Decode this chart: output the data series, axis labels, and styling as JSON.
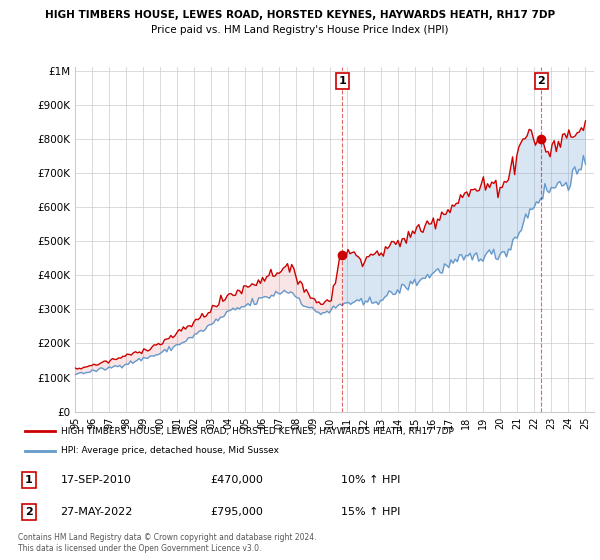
{
  "title": "HIGH TIMBERS HOUSE, LEWES ROAD, HORSTED KEYNES, HAYWARDS HEATH, RH17 7DP",
  "subtitle": "Price paid vs. HM Land Registry's House Price Index (HPI)",
  "ylim": [
    0,
    1000000
  ],
  "xlim_start": 1995.0,
  "xlim_end": 2025.5,
  "transaction1": {
    "date_num": 2010.72,
    "price": 470000,
    "label": "1"
  },
  "transaction2": {
    "date_num": 2022.41,
    "price": 795000,
    "label": "2"
  },
  "legend_line1": "HIGH TIMBERS HOUSE, LEWES ROAD, HORSTED KEYNES, HAYWARDS HEATH, RH17 7DP",
  "legend_line2": "HPI: Average price, detached house, Mid Sussex",
  "footer": "Contains HM Land Registry data © Crown copyright and database right 2024.\nThis data is licensed under the Open Government Licence v3.0.",
  "red_color": "#cc0000",
  "blue_color": "#6699cc",
  "blue_fill": "#ddeeff",
  "grid_color": "#cccccc",
  "x_tick_labels": [
    "95",
    "96",
    "97",
    "98",
    "99",
    "00",
    "01",
    "02",
    "03",
    "04",
    "05",
    "06",
    "07",
    "08",
    "09",
    "10",
    "11",
    "12",
    "13",
    "14",
    "15",
    "16",
    "17",
    "18",
    "19",
    "20",
    "21",
    "22",
    "23",
    "24",
    "25"
  ],
  "x_tick_years": [
    1995,
    1996,
    1997,
    1998,
    1999,
    2000,
    2001,
    2002,
    2003,
    2004,
    2005,
    2006,
    2007,
    2008,
    2009,
    2010,
    2011,
    2012,
    2013,
    2014,
    2015,
    2016,
    2017,
    2018,
    2019,
    2020,
    2021,
    2022,
    2023,
    2024,
    2025
  ]
}
